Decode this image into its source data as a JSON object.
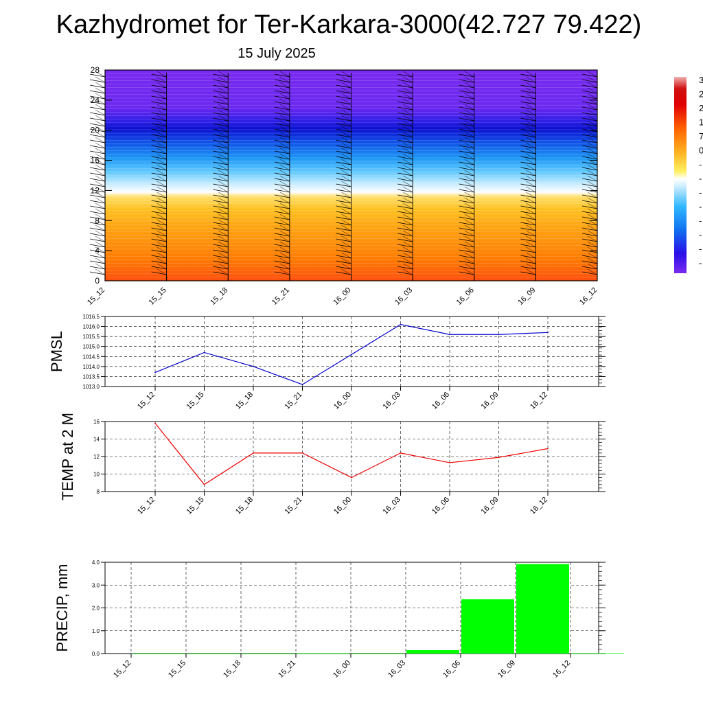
{
  "title": "Kazhydromet for Ter-Karkara-3000(42.727 79.422)",
  "subtitle": "15 July 2025",
  "chart_data": [
    {
      "type": "heatmap",
      "name": "vertical-profile",
      "x_ticks": [
        "15_12",
        "15_15",
        "15_18",
        "15_21",
        "16_00",
        "16_03",
        "16_06",
        "16_09",
        "16_12"
      ],
      "y_ticks": [
        0,
        4,
        8,
        12,
        16,
        20,
        24,
        28
      ],
      "ylim": [
        0,
        28
      ],
      "colorbar_labels": [
        "3",
        "2",
        "2",
        "1",
        "7",
        "0",
        "-",
        "-",
        "-",
        "-",
        "-",
        "-",
        "-",
        "-"
      ],
      "colors": {
        "low_levels": "#ff5a00",
        "mid_levels": "#ffd030",
        "transition": "#ffffff",
        "upper_mid": "#1aa0ff",
        "jet_core": "#1010e0",
        "top": "#7a28f0"
      }
    },
    {
      "type": "line",
      "name": "pmsl",
      "ylabel": "PMSL",
      "x": [
        "15_12",
        "15_15",
        "15_18",
        "15_21",
        "16_00",
        "16_03",
        "16_06",
        "16_09",
        "16_12"
      ],
      "values": [
        1013.7,
        1014.7,
        1014.0,
        1013.1,
        1014.6,
        1016.1,
        1015.6,
        1015.6,
        1015.7
      ],
      "ylim": [
        1013.0,
        1016.5
      ],
      "y_ticks": [
        "1013.0",
        "1013.5",
        "1014.0",
        "1014.5",
        "1015.0",
        "1015.5",
        "1016.0",
        "1016.5"
      ],
      "color": "#0000cc"
    },
    {
      "type": "line",
      "name": "temp2m",
      "ylabel": "TEMP at 2 M",
      "x": [
        "15_12",
        "15_15",
        "15_18",
        "15_21",
        "16_00",
        "16_03",
        "16_06",
        "16_09",
        "16_12"
      ],
      "values": [
        15.8,
        8.8,
        12.4,
        12.4,
        9.6,
        12.4,
        11.3,
        11.9,
        12.9
      ],
      "ylim": [
        8,
        16
      ],
      "y_ticks": [
        "8",
        "10",
        "12",
        "14",
        "16"
      ],
      "color": "#ee0000"
    },
    {
      "type": "bar",
      "name": "precip",
      "ylabel": "PRECIP, mm",
      "categories": [
        "15_12",
        "15_15",
        "15_18",
        "15_21",
        "16_00",
        "16_03",
        "16_06",
        "16_09",
        "16_12"
      ],
      "values": [
        0.0,
        0.0,
        0.0,
        0.02,
        0.0,
        0.15,
        2.38,
        3.92,
        0.02
      ],
      "ylim": [
        0,
        4.0
      ],
      "y_ticks": [
        "0.0",
        "1.0",
        "2.0",
        "3.0",
        "4.0"
      ],
      "color": "#00ff00"
    }
  ]
}
